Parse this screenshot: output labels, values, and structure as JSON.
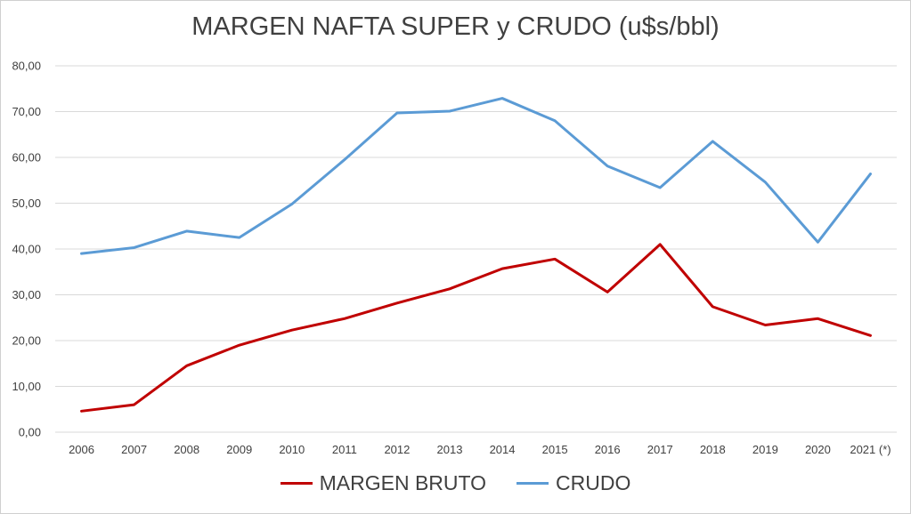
{
  "colors": {
    "margen": "#c00000",
    "crudo": "#5b9bd5",
    "grid": "#d9d9d9",
    "text": "#404040"
  },
  "chart_data": {
    "type": "line",
    "title": "MARGEN NAFTA SUPER y CRUDO (u$s/bbl)",
    "xlabel": "",
    "ylabel": "",
    "categories": [
      "2006",
      "2007",
      "2008",
      "2009",
      "2010",
      "2011",
      "2012",
      "2013",
      "2014",
      "2015",
      "2016",
      "2017",
      "2018",
      "2019",
      "2020",
      "2021 (*)"
    ],
    "ylim": [
      0,
      80
    ],
    "yticks": [
      "0,00",
      "10,00",
      "20,00",
      "30,00",
      "40,00",
      "50,00",
      "60,00",
      "70,00",
      "80,00"
    ],
    "grid": true,
    "legend_position": "bottom",
    "series": [
      {
        "name": "MARGEN BRUTO",
        "color": "#c00000",
        "values": [
          4.6,
          6.0,
          14.5,
          19.0,
          22.3,
          24.8,
          28.2,
          31.3,
          35.7,
          37.8,
          30.6,
          41.0,
          27.4,
          23.4,
          24.8,
          21.1
        ]
      },
      {
        "name": "CRUDO",
        "color": "#5b9bd5",
        "values": [
          39.0,
          40.3,
          43.9,
          42.5,
          49.8,
          59.5,
          69.7,
          70.1,
          72.9,
          68.0,
          58.1,
          53.4,
          63.5,
          54.6,
          41.5,
          56.4
        ]
      }
    ]
  }
}
